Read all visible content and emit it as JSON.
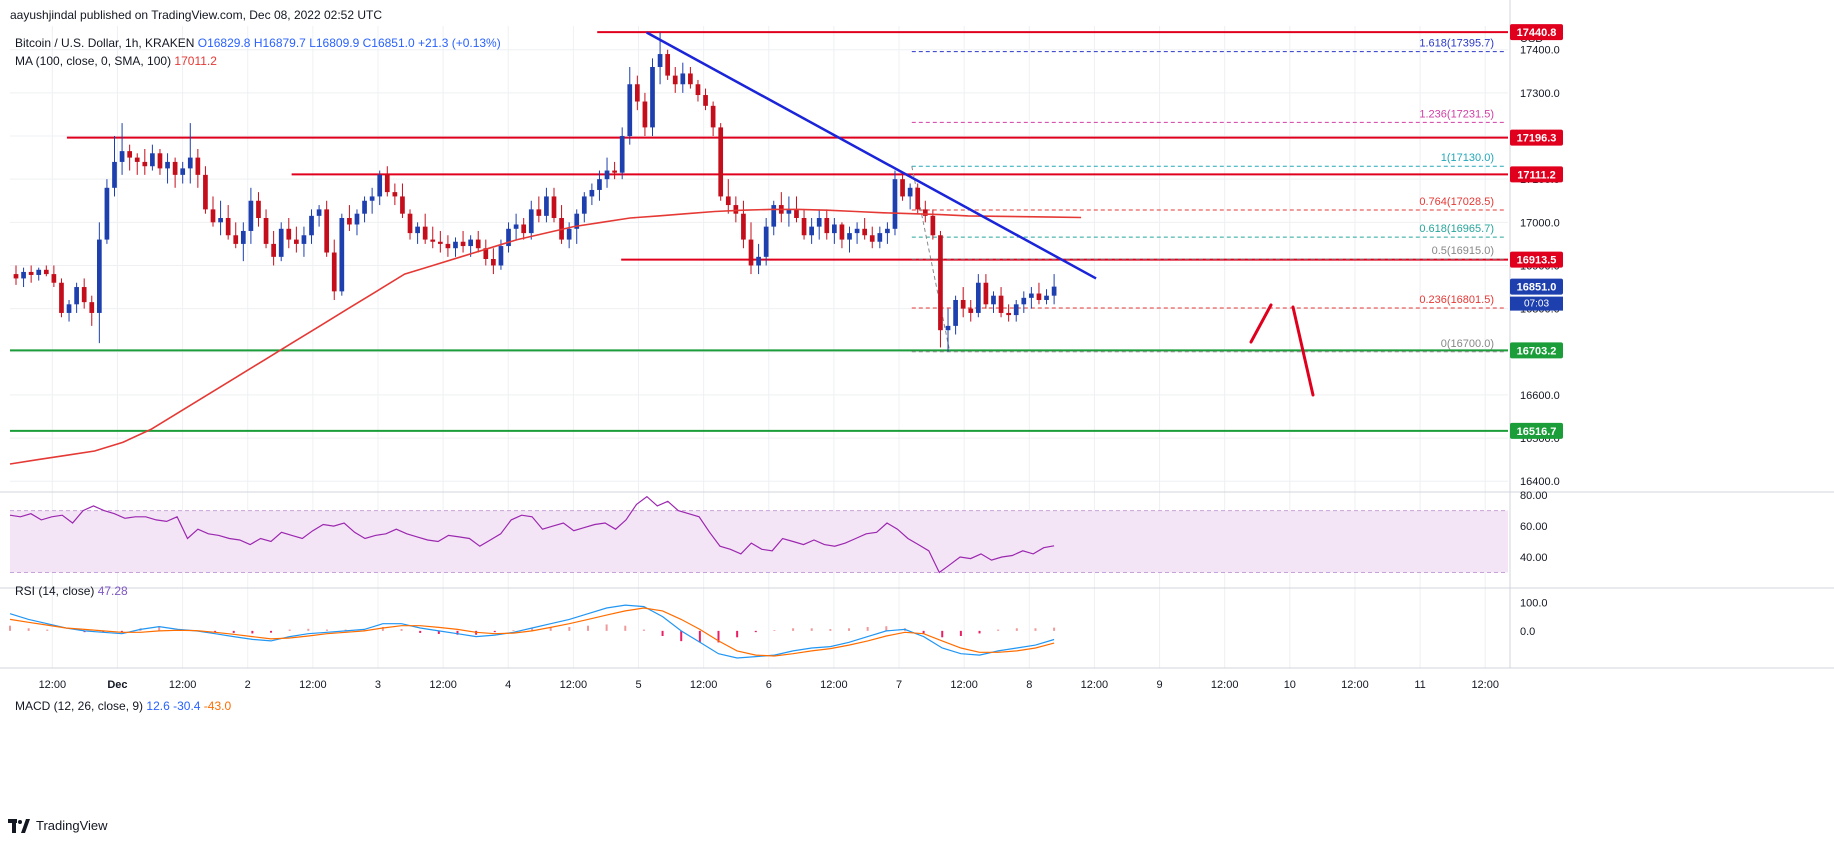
{
  "publisher": "aayushjindal published on TradingView.com, Dec 08, 2022 02:52 UTC",
  "symbol": {
    "title": "Bitcoin / U.S. Dollar, 1h, KRAKEN",
    "open": "O16829.8",
    "high": "H16879.7",
    "low": "L16809.9",
    "close": "C16851.0",
    "change": "+21.3 (+0.13%)"
  },
  "ma": {
    "label": "MA (100, close, 0, SMA, 100)",
    "value": "17011.2"
  },
  "rsi": {
    "label": "RSI (14, close)",
    "value": "47.28"
  },
  "macd": {
    "label": "MACD (12, 26, close, 9)",
    "v1": "12.6",
    "v2": "-30.4",
    "v3": "-43.0"
  },
  "currency": "USD",
  "footer_brand": "TradingView",
  "countdown": "07:03",
  "colors": {
    "bull": "#1e3fae",
    "bear": "#c40e1b",
    "ma": "#e53935",
    "resistance": "#e0001e",
    "support": "#1b9e3a",
    "trendline": "#1a24d8",
    "rsi": "#9c27b0",
    "macd": "#2196f3",
    "signal": "#ff6d00",
    "fib_red": "#e53935",
    "fib_blue": "#2a38c7",
    "fib_teal": "#22a7b8",
    "fib_pink": "#d13fa5",
    "fib_green": "#26a69a",
    "fib_grey": "#888888"
  },
  "chart_data": {
    "type": "candlestick",
    "price_axis": {
      "ticks": [
        16400,
        16500,
        16600,
        16700,
        16800,
        16900,
        17000,
        17100,
        17200,
        17300,
        17400
      ],
      "tick_labels": [
        "16400.0",
        "16500.0",
        "16600.0",
        "16700.0",
        "16800.0",
        "16900.0",
        "17000.0",
        "17100.0",
        "17200.0",
        "17300.0",
        "17400.0"
      ],
      "ylim": [
        16375,
        17455
      ]
    },
    "time_axis": {
      "labels": [
        "12:00",
        "Dec",
        "12:00",
        "2",
        "12:00",
        "3",
        "12:00",
        "4",
        "12:00",
        "5",
        "12:00",
        "6",
        "12:00",
        "7",
        "12:00",
        "8",
        "12:00",
        "9",
        "12:00",
        "10",
        "12:00",
        "11",
        "12:00"
      ],
      "bold": [
        "Dec"
      ]
    },
    "price_tags": [
      {
        "value": 17440.8,
        "label": "17440.8",
        "color": "#e0001e"
      },
      {
        "value": 17196.3,
        "label": "17196.3",
        "color": "#e0001e"
      },
      {
        "value": 17111.2,
        "label": "17111.2",
        "color": "#e0001e"
      },
      {
        "value": 16913.5,
        "label": "16913.5",
        "color": "#e0001e"
      },
      {
        "value": 16851.0,
        "label": "16851.0",
        "color": "#1e3fae"
      },
      {
        "value": 16703.2,
        "label": "16703.2",
        "color": "#1b9e3a"
      },
      {
        "value": 16516.7,
        "label": "16516.7",
        "color": "#1b9e3a"
      }
    ],
    "horizontal_lines": [
      {
        "value": 17440.8,
        "x_from": 0.392,
        "color": "resistance"
      },
      {
        "value": 17196.3,
        "x_from": 0.038,
        "color": "resistance"
      },
      {
        "value": 17111.2,
        "x_from": 0.188,
        "color": "resistance"
      },
      {
        "value": 16913.5,
        "x_from": 0.408,
        "color": "resistance"
      },
      {
        "value": 16703.2,
        "x_from": 0.0,
        "color": "support"
      },
      {
        "value": 16516.7,
        "x_from": 0.0,
        "color": "support"
      }
    ],
    "fibonacci": [
      {
        "ratio": "1.618",
        "value": 17395.7,
        "label": "1.618(17395.7)",
        "color": "fib_blue"
      },
      {
        "ratio": "1.236",
        "value": 17231.5,
        "label": "1.236(17231.5)",
        "color": "fib_pink"
      },
      {
        "ratio": "1",
        "value": 17130.0,
        "label": "1(17130.0)",
        "color": "fib_teal"
      },
      {
        "ratio": "0.764",
        "value": 17028.5,
        "label": "0.764(17028.5)",
        "color": "fib_red"
      },
      {
        "ratio": "0.618",
        "value": 16965.7,
        "label": "0.618(16965.7)",
        "color": "fib_green"
      },
      {
        "ratio": "0.5",
        "value": 16915.0,
        "label": "0.5(16915.0)",
        "color": "fib_grey"
      },
      {
        "ratio": "0.236",
        "value": 16801.5,
        "label": "0.236(16801.5)",
        "color": "fib_red"
      },
      {
        "ratio": "0",
        "value": 16700.0,
        "label": "0(16700.0)",
        "color": "fib_grey"
      }
    ],
    "trendline": {
      "from": [
        0.425,
        17440
      ],
      "to": [
        0.725,
        16870
      ]
    },
    "candles_ohlc": [
      [
        16880,
        16900,
        16855,
        16870
      ],
      [
        16870,
        16895,
        16850,
        16885
      ],
      [
        16885,
        16900,
        16860,
        16878
      ],
      [
        16878,
        16895,
        16865,
        16890
      ],
      [
        16890,
        16900,
        16875,
        16880
      ],
      [
        16880,
        16900,
        16850,
        16860
      ],
      [
        16860,
        16870,
        16780,
        16790
      ],
      [
        16790,
        16820,
        16770,
        16810
      ],
      [
        16810,
        16860,
        16790,
        16850
      ],
      [
        16850,
        16870,
        16800,
        16815
      ],
      [
        16815,
        16830,
        16760,
        16790
      ],
      [
        16790,
        17000,
        16720,
        16960
      ],
      [
        16960,
        17100,
        16950,
        17080
      ],
      [
        17080,
        17200,
        17060,
        17140
      ],
      [
        17140,
        17230,
        17110,
        17165
      ],
      [
        17165,
        17180,
        17120,
        17150
      ],
      [
        17150,
        17160,
        17110,
        17140
      ],
      [
        17140,
        17170,
        17110,
        17130
      ],
      [
        17130,
        17180,
        17120,
        17160
      ],
      [
        17160,
        17170,
        17110,
        17125
      ],
      [
        17125,
        17160,
        17090,
        17140
      ],
      [
        17140,
        17150,
        17080,
        17110
      ],
      [
        17110,
        17140,
        17090,
        17125
      ],
      [
        17125,
        17230,
        17090,
        17150
      ],
      [
        17150,
        17170,
        17080,
        17110
      ],
      [
        17110,
        17130,
        17020,
        17030
      ],
      [
        17030,
        17060,
        16990,
        17000
      ],
      [
        17000,
        17050,
        16970,
        17010
      ],
      [
        17010,
        17040,
        16960,
        16970
      ],
      [
        16970,
        17000,
        16940,
        16950
      ],
      [
        16950,
        17000,
        16910,
        16980
      ],
      [
        16980,
        17080,
        16950,
        17050
      ],
      [
        17050,
        17070,
        16990,
        17010
      ],
      [
        17010,
        17030,
        16940,
        16950
      ],
      [
        16950,
        16980,
        16900,
        16920
      ],
      [
        16920,
        17000,
        16910,
        16985
      ],
      [
        16985,
        17010,
        16940,
        16960
      ],
      [
        16960,
        16990,
        16930,
        16950
      ],
      [
        16950,
        16990,
        16920,
        16970
      ],
      [
        16970,
        17030,
        16950,
        17015
      ],
      [
        17015,
        17040,
        16990,
        17030
      ],
      [
        17030,
        17050,
        16920,
        16930
      ],
      [
        16930,
        16960,
        16820,
        16840
      ],
      [
        16840,
        17020,
        16830,
        17010
      ],
      [
        17010,
        17040,
        16980,
        16995
      ],
      [
        16995,
        17030,
        16970,
        17020
      ],
      [
        17020,
        17060,
        17000,
        17050
      ],
      [
        17050,
        17080,
        17020,
        17060
      ],
      [
        17060,
        17120,
        17040,
        17110
      ],
      [
        17110,
        17130,
        17060,
        17070
      ],
      [
        17070,
        17090,
        17040,
        17060
      ],
      [
        17060,
        17090,
        17010,
        17020
      ],
      [
        17020,
        17030,
        16960,
        16975
      ],
      [
        16975,
        17000,
        16950,
        16990
      ],
      [
        16990,
        17020,
        16950,
        16960
      ],
      [
        16960,
        16990,
        16940,
        16955
      ],
      [
        16955,
        16980,
        16930,
        16950
      ],
      [
        16950,
        16970,
        16920,
        16940
      ],
      [
        16940,
        16965,
        16920,
        16955
      ],
      [
        16955,
        16980,
        16930,
        16945
      ],
      [
        16945,
        16970,
        16920,
        16960
      ],
      [
        16960,
        16980,
        16930,
        16940
      ],
      [
        16940,
        16960,
        16900,
        16915
      ],
      [
        16915,
        16940,
        16880,
        16900
      ],
      [
        16900,
        16960,
        16890,
        16945
      ],
      [
        16945,
        17000,
        16930,
        16985
      ],
      [
        16985,
        17020,
        16960,
        16995
      ],
      [
        16995,
        17010,
        16960,
        16975
      ],
      [
        16975,
        17050,
        16960,
        17030
      ],
      [
        17030,
        17060,
        17000,
        17015
      ],
      [
        17015,
        17080,
        17000,
        17060
      ],
      [
        17060,
        17080,
        17000,
        17010
      ],
      [
        17010,
        17040,
        16950,
        16960
      ],
      [
        16960,
        17000,
        16940,
        16985
      ],
      [
        16985,
        17030,
        16950,
        17020
      ],
      [
        17020,
        17070,
        17000,
        17060
      ],
      [
        17060,
        17090,
        17040,
        17075
      ],
      [
        17075,
        17120,
        17050,
        17100
      ],
      [
        17100,
        17150,
        17080,
        17120
      ],
      [
        17120,
        17140,
        17100,
        17115
      ],
      [
        17115,
        17220,
        17100,
        17200
      ],
      [
        17200,
        17360,
        17180,
        17320
      ],
      [
        17320,
        17340,
        17260,
        17280
      ],
      [
        17280,
        17300,
        17200,
        17220
      ],
      [
        17220,
        17380,
        17200,
        17360
      ],
      [
        17360,
        17440,
        17320,
        17390
      ],
      [
        17390,
        17400,
        17330,
        17340
      ],
      [
        17340,
        17360,
        17300,
        17320
      ],
      [
        17320,
        17370,
        17300,
        17345
      ],
      [
        17345,
        17360,
        17310,
        17320
      ],
      [
        17320,
        17330,
        17280,
        17295
      ],
      [
        17295,
        17310,
        17260,
        17270
      ],
      [
        17270,
        17280,
        17200,
        17220
      ],
      [
        17220,
        17230,
        17050,
        17060
      ],
      [
        17060,
        17100,
        17020,
        17040
      ],
      [
        17040,
        17060,
        17000,
        17020
      ],
      [
        17020,
        17050,
        16940,
        16960
      ],
      [
        16960,
        17000,
        16880,
        16900
      ],
      [
        16900,
        16950,
        16880,
        16920
      ],
      [
        16920,
        17010,
        16900,
        16990
      ],
      [
        16990,
        17050,
        16970,
        17040
      ],
      [
        17040,
        17070,
        17000,
        17020
      ],
      [
        17020,
        17060,
        16990,
        17030
      ],
      [
        17030,
        17060,
        17000,
        17010
      ],
      [
        17010,
        17030,
        16960,
        16970
      ],
      [
        16970,
        17010,
        16950,
        16990
      ],
      [
        16990,
        17030,
        16960,
        17010
      ],
      [
        17010,
        17030,
        16960,
        16975
      ],
      [
        16975,
        17010,
        16950,
        16995
      ],
      [
        16995,
        17000,
        16940,
        16960
      ],
      [
        16960,
        16990,
        16930,
        16975
      ],
      [
        16975,
        17000,
        16950,
        16985
      ],
      [
        16985,
        17010,
        16960,
        16970
      ],
      [
        16970,
        16990,
        16940,
        16955
      ],
      [
        16955,
        16990,
        16940,
        16975
      ],
      [
        16975,
        17000,
        16950,
        16985
      ],
      [
        16985,
        17120,
        16970,
        17100
      ],
      [
        17100,
        17110,
        17050,
        17060
      ],
      [
        17060,
        17090,
        17030,
        17080
      ],
      [
        17080,
        17090,
        17020,
        17030
      ],
      [
        17030,
        17050,
        17000,
        17015
      ],
      [
        17015,
        17030,
        16960,
        16970
      ],
      [
        16970,
        16980,
        16710,
        16750
      ],
      [
        16750,
        16800,
        16700,
        16760
      ],
      [
        16760,
        16830,
        16740,
        16820
      ],
      [
        16820,
        16850,
        16780,
        16800
      ],
      [
        16800,
        16820,
        16770,
        16790
      ],
      [
        16790,
        16880,
        16780,
        16860
      ],
      [
        16860,
        16880,
        16800,
        16810
      ],
      [
        16810,
        16840,
        16790,
        16830
      ],
      [
        16830,
        16850,
        16780,
        16790
      ],
      [
        16790,
        16810,
        16770,
        16785
      ],
      [
        16785,
        16820,
        16770,
        16810
      ],
      [
        16810,
        16840,
        16790,
        16825
      ],
      [
        16825,
        16850,
        16800,
        16835
      ],
      [
        16835,
        16860,
        16810,
        16820
      ],
      [
        16820,
        16845,
        16810,
        16830
      ],
      [
        16830,
        16880,
        16810,
        16851
      ]
    ],
    "ma_100": [
      16440,
      16450,
      16460,
      16470,
      16490,
      16520,
      16560,
      16600,
      16640,
      16680,
      16720,
      16760,
      16800,
      16840,
      16880,
      16900,
      16920,
      16940,
      16960,
      16975,
      16990,
      17000,
      17010,
      17015,
      17020,
      17025,
      17028,
      17030,
      17030,
      17028,
      17025,
      17022,
      17020,
      17018,
      17015,
      17014,
      17013,
      17012,
      17011.2
    ],
    "rsi": [
      67,
      66,
      68,
      64,
      66,
      67,
      62,
      70,
      73,
      70,
      68,
      65,
      66,
      66,
      64,
      63,
      66,
      52,
      58,
      55,
      54,
      52,
      51,
      48,
      52,
      50,
      56,
      54,
      52,
      57,
      61,
      60,
      62,
      56,
      52,
      54,
      55,
      58,
      55,
      53,
      51,
      50,
      54,
      53,
      52,
      47,
      51,
      55,
      64,
      67,
      66,
      58,
      60,
      62,
      57,
      59,
      61,
      62,
      58,
      64,
      74,
      79,
      73,
      76,
      70,
      68,
      66,
      56,
      47,
      45,
      42,
      49,
      45,
      44,
      52,
      50,
      48,
      51,
      48,
      47,
      49,
      52,
      55,
      56,
      62,
      58,
      52,
      48,
      44,
      30,
      35,
      40,
      39,
      42,
      38,
      40,
      41,
      44,
      42,
      46,
      47.28
    ],
    "macd_line": [
      60,
      40,
      25,
      10,
      0,
      -5,
      -10,
      5,
      15,
      5,
      0,
      -10,
      -20,
      -30,
      -35,
      -20,
      -10,
      -5,
      0,
      5,
      25,
      25,
      10,
      0,
      -10,
      -20,
      -15,
      -5,
      10,
      25,
      40,
      60,
      80,
      90,
      85,
      50,
      0,
      -40,
      -80,
      -95,
      -90,
      -85,
      -70,
      -60,
      -55,
      -40,
      -20,
      0,
      5,
      -20,
      -60,
      -80,
      -85,
      -70,
      -60,
      -50,
      -30.4
    ],
    "signal_line": [
      40,
      30,
      20,
      10,
      5,
      0,
      -5,
      -5,
      0,
      2,
      1,
      -5,
      -12,
      -20,
      -28,
      -25,
      -18,
      -10,
      -5,
      0,
      10,
      18,
      18,
      12,
      5,
      -5,
      -10,
      -8,
      0,
      12,
      25,
      40,
      55,
      70,
      80,
      70,
      40,
      5,
      -35,
      -70,
      -85,
      -88,
      -80,
      -70,
      -62,
      -50,
      -35,
      -18,
      -5,
      -10,
      -35,
      -60,
      -75,
      -75,
      -70,
      -60,
      -43.0
    ],
    "rsi_axis": {
      "ticks": [
        80,
        60,
        40
      ],
      "labels": [
        "80.00",
        "60.00",
        "40.00"
      ],
      "ylim": [
        20,
        82
      ],
      "band": [
        30,
        70
      ]
    },
    "macd_axis": {
      "ticks": [
        100,
        0
      ],
      "labels": [
        "100.0",
        "0.0"
      ],
      "ylim": [
        -130,
        150
      ]
    }
  }
}
